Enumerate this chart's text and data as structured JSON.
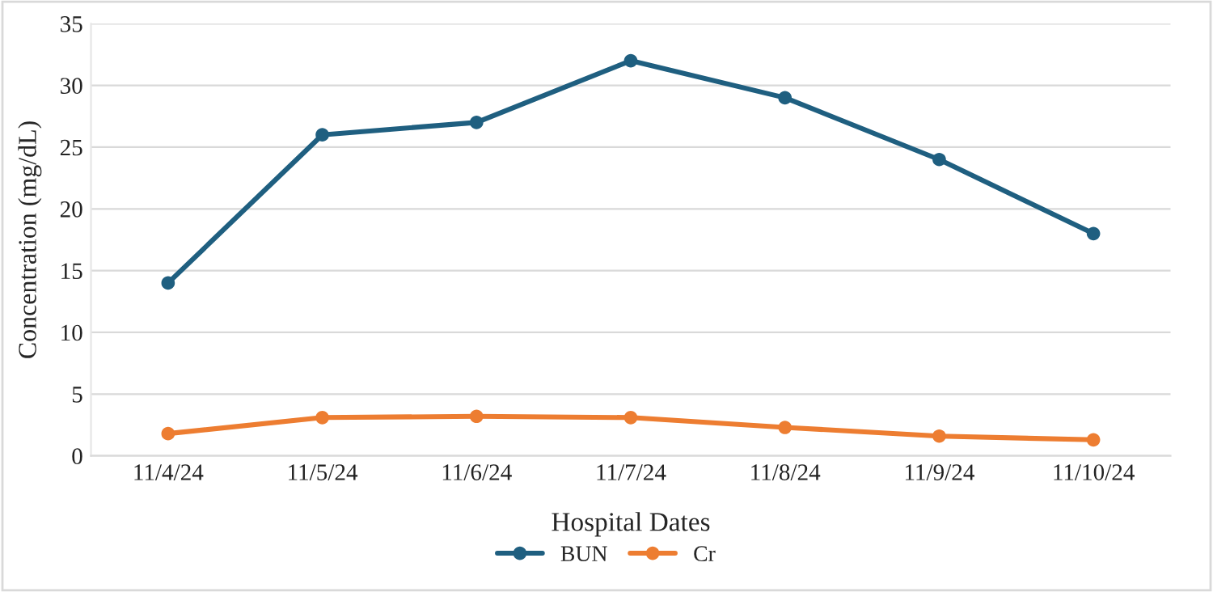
{
  "chart_data": {
    "type": "line",
    "xlabel": "Hospital Dates",
    "ylabel": "Concentration (mg/dL)",
    "categories": [
      "11/4/24",
      "11/5/24",
      "11/6/24",
      "11/7/24",
      "11/8/24",
      "11/9/24",
      "11/10/24"
    ],
    "series": [
      {
        "name": "BUN",
        "color": "#1f5f80",
        "values": [
          14,
          26,
          27,
          32,
          29,
          24,
          18
        ]
      },
      {
        "name": "Cr",
        "color": "#ed7d31",
        "values": [
          1.8,
          3.1,
          3.2,
          3.1,
          2.3,
          1.6,
          1.3
        ]
      }
    ],
    "ylim": [
      0,
      35
    ],
    "yticks": [
      0,
      5,
      10,
      15,
      20,
      25,
      30,
      35
    ],
    "grid": "y",
    "legend": "bottom",
    "marker": "circle",
    "line_style": "solid"
  }
}
